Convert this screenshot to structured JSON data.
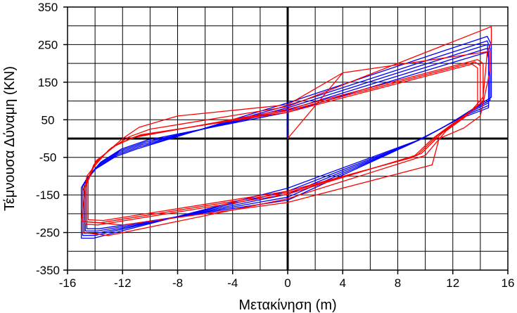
{
  "chart_data": {
    "type": "line",
    "title": "",
    "xlabel": "Μετακίνηση (m)",
    "ylabel": "Τέμνουσα Δύναμη (KN)",
    "xlim": [
      -16,
      16
    ],
    "ylim": [
      -350,
      350
    ],
    "x_ticks": [
      -16,
      -12,
      -8,
      -4,
      0,
      4,
      8,
      12,
      16
    ],
    "y_ticks": [
      350,
      250,
      150,
      50,
      -50,
      -150,
      -250,
      -350
    ],
    "x_ticks_text": [
      "-16",
      "-12",
      "-8",
      "-4",
      "0",
      "4",
      "8",
      "12",
      "16"
    ],
    "y_ticks_text": [
      "350",
      "250",
      "150",
      "50",
      "-50",
      "-150",
      "-250",
      "-350"
    ],
    "grid": true,
    "colors": {
      "series_a": "#0000ff",
      "series_b": "#ff0000",
      "axis": "#000000",
      "grid": "#000000"
    },
    "series": [
      {
        "color": "#0000ff",
        "loops": [
          [
            [
              0,
              0
            ],
            [
              0,
              95
            ],
            [
              14.5,
              272
            ],
            [
              14.8,
              250
            ],
            [
              14.8,
              110
            ],
            [
              13.5,
              80
            ],
            [
              12,
              45
            ],
            [
              9.8,
              0
            ],
            [
              0,
              -132
            ],
            [
              -14.1,
              -265
            ],
            [
              -15,
              -265
            ],
            [
              -15,
              -130
            ],
            [
              -14,
              -82
            ],
            [
              -12.5,
              -48
            ],
            [
              -11,
              -28
            ],
            [
              0,
              95
            ]
          ],
          [
            [
              0,
              88
            ],
            [
              14.5,
              260
            ],
            [
              14.7,
              240
            ],
            [
              14.7,
              102
            ],
            [
              13.2,
              72
            ],
            [
              11.7,
              38
            ],
            [
              9.5,
              -5
            ],
            [
              0,
              -140
            ],
            [
              -14,
              -258
            ],
            [
              -14.9,
              -258
            ],
            [
              -14.9,
              -124
            ],
            [
              -13.9,
              -78
            ],
            [
              -12.4,
              -43
            ],
            [
              -10.8,
              -22
            ],
            [
              0,
              88
            ]
          ],
          [
            [
              0,
              82
            ],
            [
              14.5,
              250
            ],
            [
              14.6,
              230
            ],
            [
              14.6,
              95
            ],
            [
              12.9,
              64
            ],
            [
              11.4,
              32
            ],
            [
              9.2,
              -10
            ],
            [
              0,
              -148
            ],
            [
              -13.9,
              -252
            ],
            [
              -14.8,
              -252
            ],
            [
              -14.8,
              -118
            ],
            [
              -13.8,
              -73
            ],
            [
              -12.3,
              -38
            ],
            [
              -10.6,
              -16
            ],
            [
              0,
              82
            ]
          ],
          [
            [
              0,
              76
            ],
            [
              14.5,
              240
            ],
            [
              14.6,
              220
            ],
            [
              14.6,
              88
            ],
            [
              12.6,
              57
            ],
            [
              11.1,
              26
            ],
            [
              8.9,
              -15
            ],
            [
              0,
              -156
            ],
            [
              -13.8,
              -246
            ],
            [
              -14.7,
              -246
            ],
            [
              -14.7,
              -112
            ],
            [
              -13.7,
              -68
            ],
            [
              -12.2,
              -33
            ],
            [
              -10.4,
              -10
            ],
            [
              0,
              76
            ]
          ],
          [
            [
              0,
              70
            ],
            [
              14.5,
              230
            ],
            [
              14.6,
              212
            ],
            [
              14.6,
              82
            ],
            [
              12.3,
              50
            ],
            [
              10.8,
              20
            ],
            [
              8.6,
              -20
            ],
            [
              0,
              -164
            ],
            [
              -13.7,
              -240
            ],
            [
              -14.6,
              -240
            ],
            [
              -14.6,
              -106
            ],
            [
              -13.6,
              -63
            ],
            [
              -12.1,
              -28
            ],
            [
              -10.2,
              -4
            ],
            [
              0,
              70
            ]
          ]
        ]
      },
      {
        "color": "#ff0000",
        "loops": [
          [
            [
              0,
              0
            ],
            [
              4,
              175
            ],
            [
              14.7,
              232
            ],
            [
              14.7,
              180
            ],
            [
              14,
              60
            ],
            [
              12.8,
              28
            ],
            [
              11,
              0
            ],
            [
              10.5,
              -70
            ],
            [
              0,
              -170
            ],
            [
              -12,
              -230
            ],
            [
              -15,
              -220
            ],
            [
              -14.6,
              -100
            ],
            [
              -13.5,
              -48
            ],
            [
              -12,
              0
            ],
            [
              -10.8,
              30
            ],
            [
              -8,
              60
            ],
            [
              0,
              90
            ],
            [
              4,
              175
            ]
          ],
          [
            [
              0,
              85
            ],
            [
              14.8,
              298
            ],
            [
              14.8,
              255
            ],
            [
              14.5,
              230
            ],
            [
              14.2,
              110
            ],
            [
              13,
              60
            ],
            [
              11.5,
              20
            ],
            [
              10,
              -45
            ],
            [
              0,
              -160
            ],
            [
              -13,
              -258
            ],
            [
              -14.9,
              -250
            ],
            [
              -14.9,
              -140
            ],
            [
              -14.2,
              -80
            ],
            [
              -13,
              -30
            ],
            [
              -11.5,
              5
            ],
            [
              -10,
              25
            ],
            [
              0,
              85
            ]
          ],
          [
            [
              0,
              78
            ],
            [
              13.8,
              210
            ],
            [
              14.2,
              200
            ],
            [
              14.2,
              100
            ],
            [
              12.6,
              52
            ],
            [
              11.2,
              14
            ],
            [
              9.7,
              -40
            ],
            [
              0,
              -148
            ],
            [
              -13.8,
              -230
            ],
            [
              -14.7,
              -228
            ],
            [
              -14.7,
              -128
            ],
            [
              -14.1,
              -70
            ],
            [
              -12.8,
              -24
            ],
            [
              -11.3,
              2
            ],
            [
              0,
              78
            ]
          ],
          [
            [
              0,
              74
            ],
            [
              13.6,
              204
            ],
            [
              14,
              194
            ],
            [
              14,
              93
            ],
            [
              12.3,
              46
            ],
            [
              10.9,
              8
            ],
            [
              9.4,
              -45
            ],
            [
              0,
              -144
            ],
            [
              -13.6,
              -224
            ],
            [
              -14.6,
              -222
            ],
            [
              -14.6,
              -120
            ],
            [
              -14,
              -64
            ],
            [
              -12.6,
              -20
            ],
            [
              -11,
              6
            ],
            [
              0,
              74
            ]
          ],
          [
            [
              0,
              70
            ],
            [
              13.4,
              198
            ],
            [
              13.8,
              188
            ],
            [
              13.8,
              86
            ],
            [
              12,
              40
            ],
            [
              10.6,
              2
            ],
            [
              9.1,
              -50
            ],
            [
              0,
              -140
            ],
            [
              -13.4,
              -218
            ],
            [
              -14.5,
              -216
            ],
            [
              -14.5,
              -112
            ],
            [
              -13.9,
              -58
            ],
            [
              -12.4,
              -16
            ],
            [
              -10.7,
              10
            ],
            [
              0,
              70
            ]
          ]
        ]
      }
    ]
  }
}
